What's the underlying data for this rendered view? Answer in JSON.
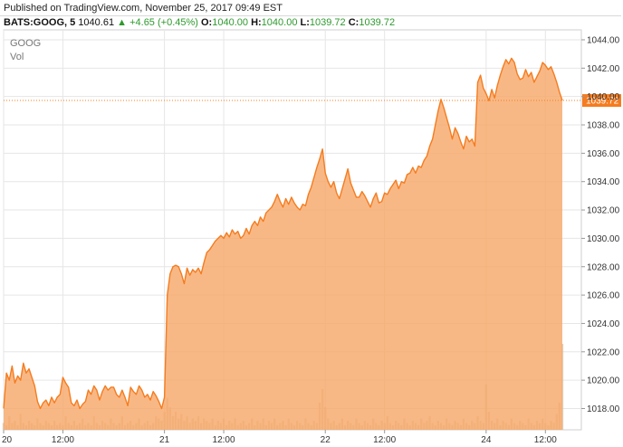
{
  "header": {
    "published": "Published on TradingView.com, November 25, 2017 09:49 EST",
    "symbol": "BATS:GOOG, 5",
    "last": "1040.61",
    "arrow": "▲",
    "change": "+4.65 (+0.45%)",
    "open_label": "O:",
    "open": "1040.00",
    "high_label": "H:",
    "high": "1040.00",
    "low_label": "L:",
    "low": "1039.72",
    "close_label": "C:",
    "close": "1039.72"
  },
  "colors": {
    "line": "#f57c1f",
    "fill": "#f7a86a",
    "grid": "#e6e6e6",
    "up": "#2d9a2d",
    "price_tag": "#f57c1f",
    "volume": "#d8c3a5"
  },
  "chart_data": {
    "type": "area",
    "series_labels": [
      "GOOG",
      "Vol"
    ],
    "ylim": [
      1016.5,
      1044.7
    ],
    "y_ticks": [
      "1018.00",
      "1020.00",
      "1022.00",
      "1024.00",
      "1026.00",
      "1028.00",
      "1030.00",
      "1032.00",
      "1034.00",
      "1036.00",
      "1038.00",
      "1040.00",
      "1042.00",
      "1044.00"
    ],
    "x_ticks": [
      {
        "i": 0,
        "label": "20"
      },
      {
        "i": 21,
        "label": "12:00"
      },
      {
        "i": 57,
        "label": "21"
      },
      {
        "i": 78,
        "label": "12:00"
      },
      {
        "i": 114,
        "label": "22"
      },
      {
        "i": 135,
        "label": "12:00"
      },
      {
        "i": 171,
        "label": "24"
      },
      {
        "i": 192,
        "label": "12:00"
      }
    ],
    "last_price": "1039.72",
    "last_value": 1039.72,
    "volume_visible": true,
    "values": [
      1018.0,
      1020.5,
      1020.0,
      1021.0,
      1019.8,
      1020.3,
      1020.0,
      1021.2,
      1020.5,
      1020.8,
      1020.2,
      1019.6,
      1018.5,
      1018.0,
      1018.4,
      1018.6,
      1018.2,
      1018.8,
      1018.4,
      1018.8,
      1019.0,
      1020.2,
      1019.8,
      1019.5,
      1018.4,
      1018.2,
      1018.6,
      1018.0,
      1018.3,
      1018.5,
      1019.3,
      1019.0,
      1019.6,
      1019.3,
      1018.6,
      1019.2,
      1019.6,
      1019.3,
      1019.5,
      1019.5,
      1019.0,
      1018.8,
      1019.3,
      1018.8,
      1018.2,
      1019.5,
      1019.2,
      1019.0,
      1019.6,
      1019.3,
      1018.8,
      1019.0,
      1018.6,
      1019.2,
      1018.9,
      1018.5,
      1018.0,
      1018.8,
      1026.0,
      1027.5,
      1028.0,
      1028.1,
      1028.0,
      1027.5,
      1026.8,
      1027.9,
      1027.4,
      1027.8,
      1027.6,
      1027.9,
      1027.5,
      1028.3,
      1029.0,
      1029.2,
      1029.5,
      1029.8,
      1030.0,
      1030.2,
      1030.0,
      1030.4,
      1030.1,
      1030.6,
      1030.3,
      1030.5,
      1030.0,
      1030.2,
      1030.7,
      1030.3,
      1030.9,
      1031.2,
      1030.9,
      1031.5,
      1031.2,
      1031.8,
      1032.0,
      1032.2,
      1032.6,
      1033.1,
      1032.6,
      1032.2,
      1032.8,
      1032.4,
      1032.9,
      1032.5,
      1032.2,
      1032.0,
      1032.4,
      1032.3,
      1033.1,
      1033.6,
      1034.3,
      1035.0,
      1035.6,
      1036.3,
      1034.6,
      1034.0,
      1033.6,
      1034.0,
      1033.2,
      1032.8,
      1033.5,
      1034.2,
      1034.9,
      1033.9,
      1033.4,
      1032.9,
      1032.9,
      1033.3,
      1033.0,
      1032.6,
      1032.2,
      1032.8,
      1033.2,
      1032.5,
      1032.6,
      1033.2,
      1033.1,
      1033.5,
      1033.8,
      1034.1,
      1033.5,
      1034.0,
      1033.9,
      1034.5,
      1034.6,
      1035.0,
      1034.6,
      1035.1,
      1035.0,
      1035.5,
      1035.8,
      1036.5,
      1037.0,
      1038.0,
      1039.0,
      1039.8,
      1039.2,
      1038.5,
      1037.8,
      1037.0,
      1037.8,
      1037.4,
      1036.8,
      1036.3,
      1037.2,
      1036.8,
      1037.0,
      1036.5,
      1041.0,
      1041.5,
      1040.6,
      1040.2,
      1039.7,
      1040.5,
      1039.9,
      1040.8,
      1041.5,
      1042.1,
      1042.6,
      1042.3,
      1042.7,
      1042.4,
      1041.6,
      1041.2,
      1041.3,
      1041.9,
      1041.4,
      1041.7,
      1041.0,
      1041.4,
      1041.8,
      1042.4,
      1042.2,
      1041.9,
      1042.1,
      1041.6,
      1041.0,
      1040.3,
      1039.72
    ],
    "volume": [
      3,
      2,
      6,
      3,
      4,
      2,
      7,
      3,
      2,
      4,
      3,
      2,
      5,
      3,
      2,
      4,
      3,
      2,
      4,
      2,
      3,
      2,
      6,
      3,
      2,
      4,
      2,
      3,
      5,
      2,
      3,
      2,
      6,
      3,
      2,
      4,
      3,
      2,
      5,
      3,
      2,
      3,
      6,
      2,
      3,
      4,
      2,
      3,
      5,
      2,
      3,
      4,
      2,
      3,
      6,
      5,
      4,
      8,
      14,
      10,
      6,
      8,
      5,
      7,
      4,
      6,
      3,
      5,
      4,
      6,
      3,
      5,
      4,
      3,
      5,
      2,
      4,
      3,
      5,
      2,
      4,
      3,
      5,
      2,
      3,
      4,
      2,
      3,
      5,
      2,
      4,
      3,
      5,
      2,
      4,
      3,
      5,
      2,
      3,
      4,
      2,
      5,
      3,
      2,
      4,
      3,
      2,
      5,
      3,
      2,
      4,
      3,
      12,
      18,
      10,
      5,
      3,
      4,
      2,
      3,
      5,
      2,
      4,
      3,
      2,
      5,
      3,
      2,
      4,
      3,
      2,
      5,
      3,
      2,
      4,
      3,
      6,
      3,
      2,
      4,
      3,
      2,
      5,
      3,
      2,
      4,
      3,
      2,
      5,
      3,
      4,
      6,
      3,
      2,
      4,
      3,
      2,
      5,
      3,
      2,
      4,
      3,
      2,
      5,
      3,
      2,
      4,
      3,
      6,
      4,
      3,
      20,
      8,
      4,
      3,
      5,
      2,
      4,
      3,
      2,
      5,
      3,
      2,
      4,
      3,
      2,
      5,
      3,
      2,
      4,
      3,
      5,
      3,
      2,
      4,
      3,
      7,
      12,
      38
    ]
  }
}
